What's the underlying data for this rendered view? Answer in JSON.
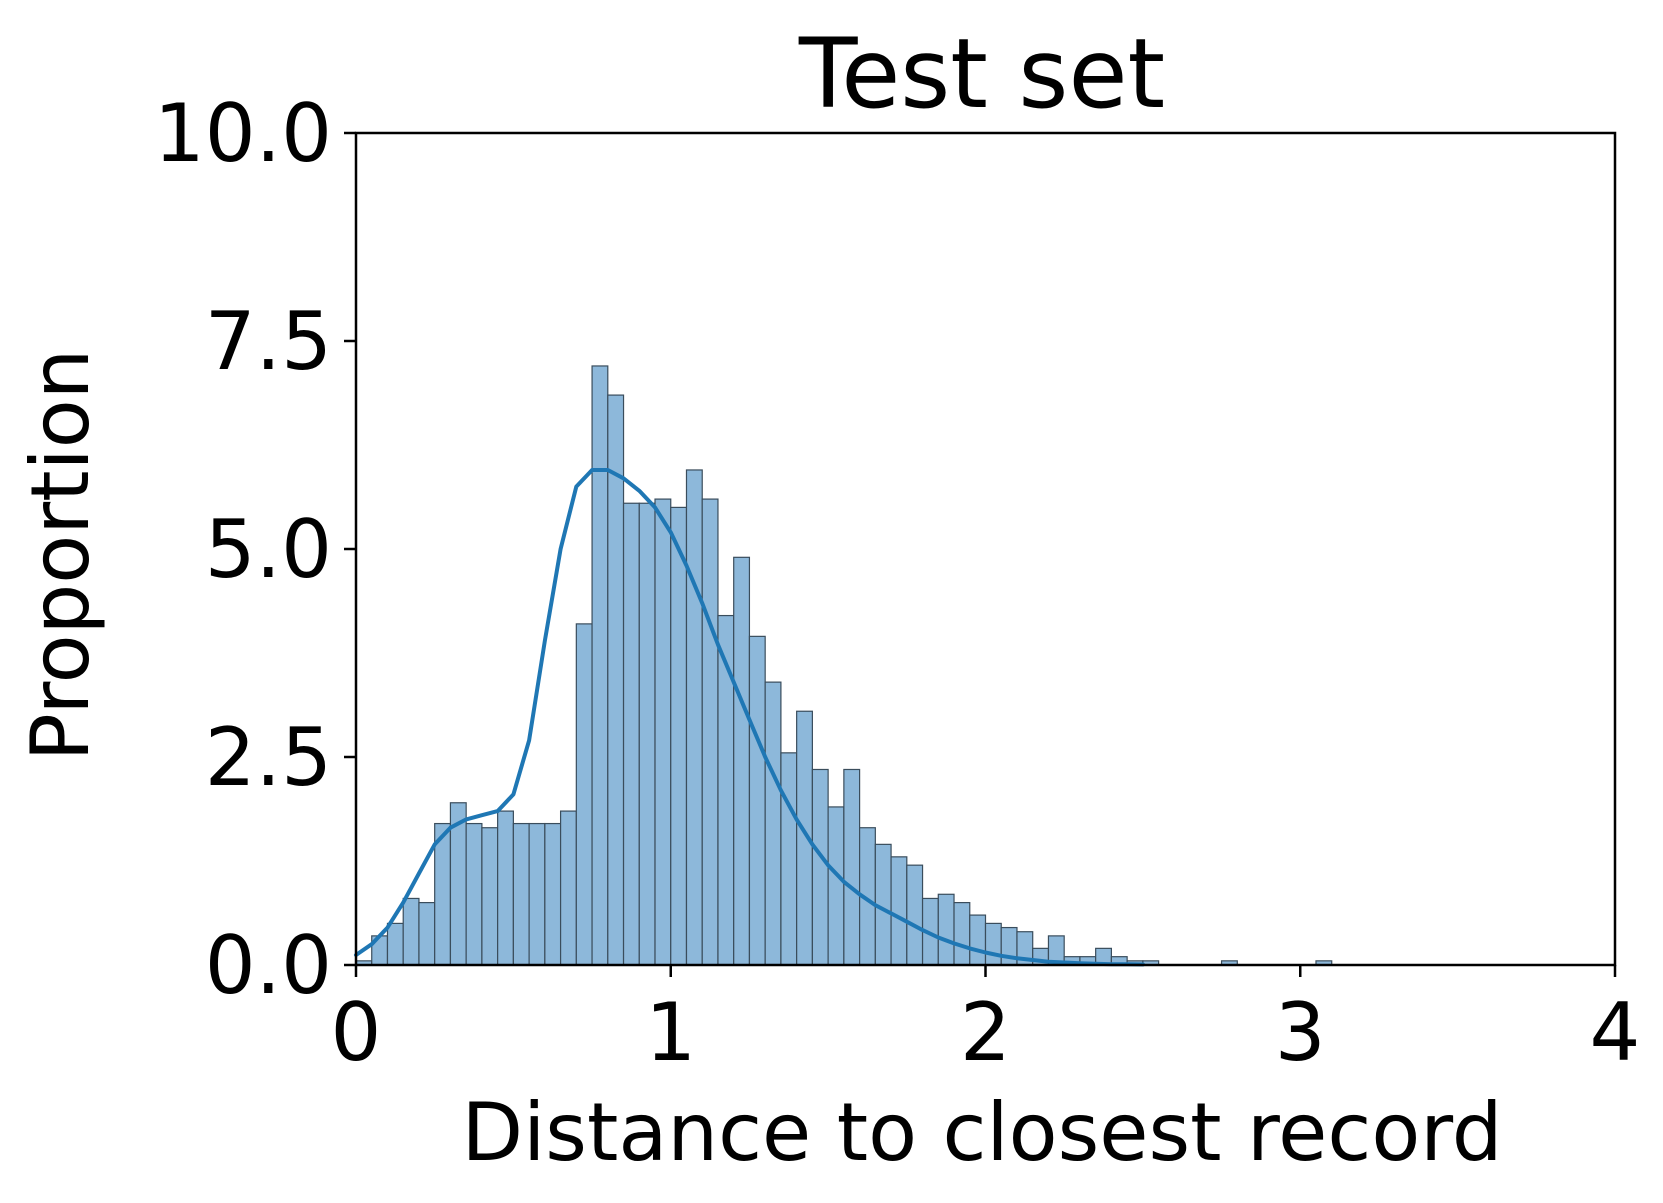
{
  "chart_data": {
    "type": "bar",
    "title": "Test set",
    "xlabel": "Distance to closest record",
    "ylabel": "Proportion",
    "xlim": [
      0,
      4
    ],
    "ylim": [
      0,
      10
    ],
    "xticks": [
      0,
      1,
      2,
      3,
      4
    ],
    "xtick_labels": [
      "0",
      "1",
      "2",
      "3",
      "4"
    ],
    "yticks": [
      0,
      2.5,
      5,
      7.5,
      10
    ],
    "ytick_labels": [
      "0.0",
      "2.5",
      "5.0",
      "7.5",
      "10.0"
    ],
    "grid": false,
    "legend": "none",
    "bin_start": 0,
    "bin_width": 0.05,
    "histogram": [
      0.05,
      0.35,
      0.5,
      0.8,
      0.75,
      1.7,
      1.95,
      1.7,
      1.65,
      1.85,
      1.7,
      1.7,
      1.7,
      1.85,
      4.1,
      7.2,
      6.85,
      5.55,
      5.55,
      5.6,
      5.5,
      5.95,
      5.6,
      4.2,
      4.9,
      3.95,
      3.4,
      2.55,
      3.05,
      2.35,
      1.9,
      2.35,
      1.65,
      1.45,
      1.3,
      1.2,
      0.8,
      0.85,
      0.75,
      0.6,
      0.5,
      0.45,
      0.4,
      0.2,
      0.35,
      0.1,
      0.1,
      0.2,
      0.1,
      0.05,
      0.05,
      0.0,
      0.0,
      0.0,
      0.0,
      0.05,
      0.0,
      0.0,
      0.0,
      0.0,
      0.0,
      0.05,
      0.0,
      0.0,
      0.0,
      0.0,
      0.0,
      0.0,
      0.0,
      0.0,
      0.0,
      0.0,
      0.0,
      0.0,
      0.0,
      0.0,
      0.0,
      0.0,
      0.0,
      0.0,
      0.0,
      0.0,
      0.0,
      0.0,
      0.0,
      0.0,
      0.0,
      0.0,
      0.0,
      0.0
    ],
    "kde": {
      "x": [
        0.0,
        0.05,
        0.1,
        0.15,
        0.2,
        0.25,
        0.3,
        0.35,
        0.4,
        0.45,
        0.5,
        0.55,
        0.6,
        0.65,
        0.7,
        0.75,
        0.8,
        0.85,
        0.9,
        0.95,
        1.0,
        1.05,
        1.1,
        1.15,
        1.2,
        1.25,
        1.3,
        1.35,
        1.4,
        1.45,
        1.5,
        1.55,
        1.6,
        1.65,
        1.7,
        1.75,
        1.8,
        1.85,
        1.9,
        1.95,
        2.0,
        2.05,
        2.1,
        2.15,
        2.2,
        2.25,
        2.3,
        2.35,
        2.4,
        2.45,
        2.5
      ],
      "y": [
        0.12,
        0.25,
        0.45,
        0.75,
        1.1,
        1.45,
        1.65,
        1.75,
        1.8,
        1.85,
        2.05,
        2.7,
        3.9,
        5.0,
        5.75,
        5.95,
        5.95,
        5.85,
        5.7,
        5.5,
        5.2,
        4.8,
        4.35,
        3.85,
        3.4,
        2.95,
        2.5,
        2.1,
        1.75,
        1.45,
        1.2,
        1.0,
        0.85,
        0.72,
        0.62,
        0.52,
        0.42,
        0.33,
        0.26,
        0.2,
        0.15,
        0.11,
        0.08,
        0.06,
        0.04,
        0.03,
        0.02,
        0.015,
        0.01,
        0.008,
        0.006
      ]
    },
    "colors": {
      "bar_fill": "#8DB8DA",
      "bar_edge": "#3A4D5C",
      "kde_line": "#1F77B4",
      "axes": "#000000"
    }
  }
}
